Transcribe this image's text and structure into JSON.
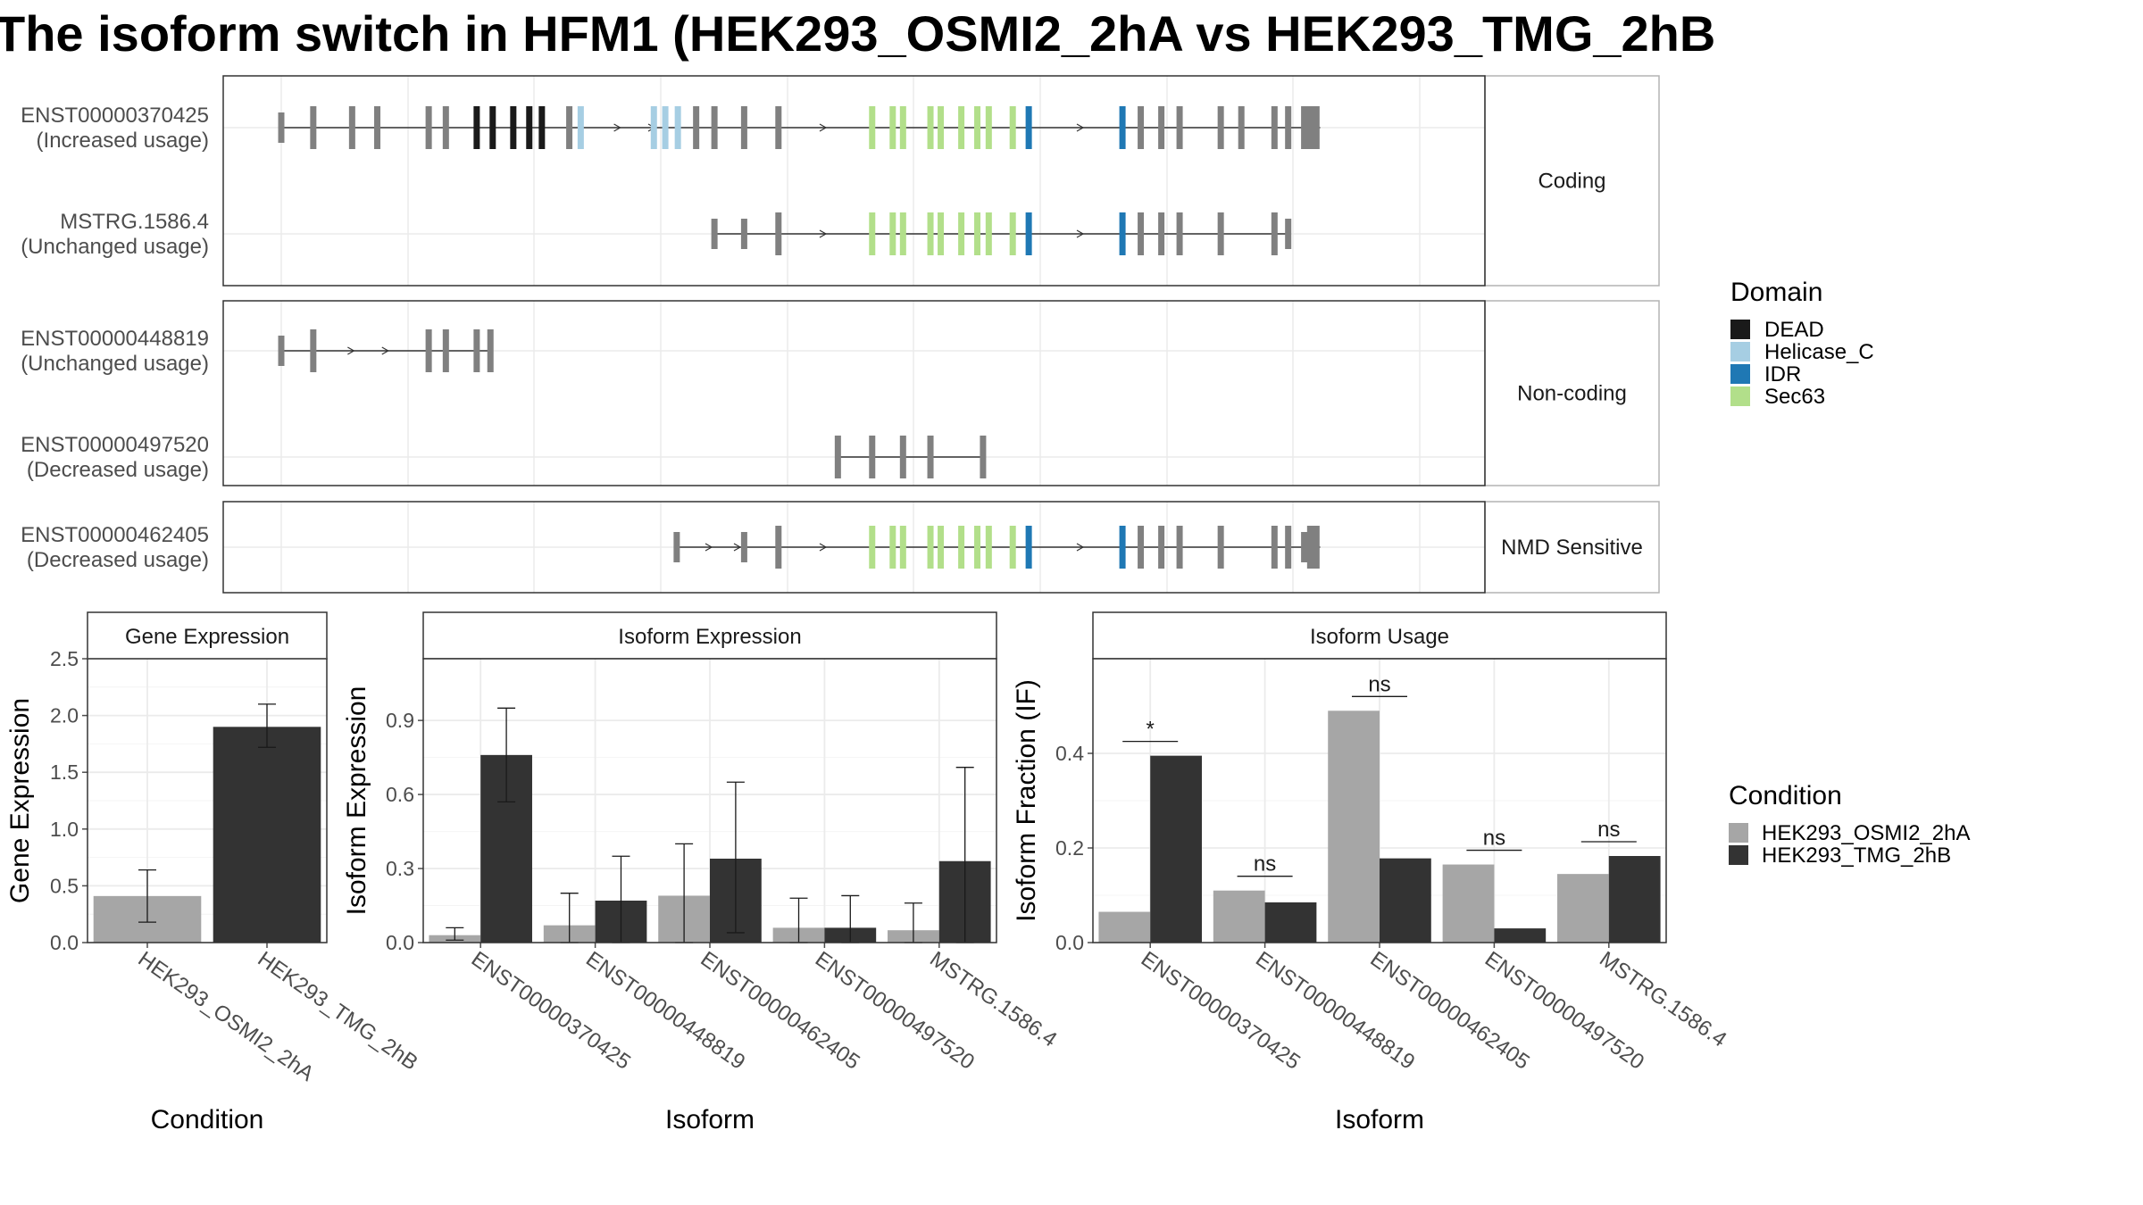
{
  "title": "The isoform switch in HFM1 (HEK293_OSMI2_2hA vs HEK293_TMG_2hB",
  "colors": {
    "DEAD": "#1a1a1a",
    "Helicase_C": "#a6cee3",
    "IDR": "#1f78b4",
    "Sec63": "#b2df8a",
    "exon": "#808080",
    "cond_a": "#a6a6a6",
    "cond_b": "#333333"
  },
  "legends": {
    "domain": {
      "title": "Domain",
      "items": [
        "DEAD",
        "Helicase_C",
        "IDR",
        "Sec63"
      ]
    },
    "condition": {
      "title": "Condition",
      "items": [
        "HEK293_OSMI2_2hA",
        "HEK293_TMG_2hB"
      ]
    }
  },
  "chart_data": [
    {
      "type": "table",
      "panel": "transcript-structure",
      "x_range": [
        0,
        1
      ],
      "facets": [
        {
          "label": "Coding",
          "transcripts": [
            {
              "id": "ENST00000370425",
              "usage": "(Increased usage)",
              "start": 0.0,
              "end": 0.909,
              "arrows": [
                0.295,
                0.325,
                0.475,
                0.7
              ],
              "exons": [
                {
                  "x": 0.0,
                  "d": "exon",
                  "tall": false
                },
                {
                  "x": 0.028,
                  "d": "exon"
                },
                {
                  "x": 0.062,
                  "d": "exon"
                },
                {
                  "x": 0.084,
                  "d": "exon"
                },
                {
                  "x": 0.129,
                  "d": "exon"
                },
                {
                  "x": 0.144,
                  "d": "exon"
                },
                {
                  "x": 0.171,
                  "d": "DEAD"
                },
                {
                  "x": 0.185,
                  "d": "DEAD"
                },
                {
                  "x": 0.203,
                  "d": "DEAD"
                },
                {
                  "x": 0.217,
                  "d": "DEAD"
                },
                {
                  "x": 0.228,
                  "d": "DEAD"
                },
                {
                  "x": 0.252,
                  "d": "exon"
                },
                {
                  "x": 0.262,
                  "d": "Helicase_C"
                },
                {
                  "x": 0.326,
                  "d": "Helicase_C"
                },
                {
                  "x": 0.336,
                  "d": "Helicase_C"
                },
                {
                  "x": 0.347,
                  "d": "Helicase_C"
                },
                {
                  "x": 0.363,
                  "d": "exon"
                },
                {
                  "x": 0.379,
                  "d": "exon"
                },
                {
                  "x": 0.405,
                  "d": "exon"
                },
                {
                  "x": 0.435,
                  "d": "exon"
                },
                {
                  "x": 0.517,
                  "d": "Sec63"
                },
                {
                  "x": 0.535,
                  "d": "Sec63"
                },
                {
                  "x": 0.544,
                  "d": "Sec63"
                },
                {
                  "x": 0.568,
                  "d": "Sec63"
                },
                {
                  "x": 0.577,
                  "d": "Sec63"
                },
                {
                  "x": 0.595,
                  "d": "Sec63"
                },
                {
                  "x": 0.609,
                  "d": "Sec63"
                },
                {
                  "x": 0.619,
                  "d": "Sec63"
                },
                {
                  "x": 0.64,
                  "d": "Sec63"
                },
                {
                  "x": 0.654,
                  "d": "IDR"
                },
                {
                  "x": 0.736,
                  "d": "IDR"
                },
                {
                  "x": 0.752,
                  "d": "exon"
                },
                {
                  "x": 0.77,
                  "d": "exon"
                },
                {
                  "x": 0.786,
                  "d": "exon"
                },
                {
                  "x": 0.822,
                  "d": "exon"
                },
                {
                  "x": 0.84,
                  "d": "exon"
                },
                {
                  "x": 0.869,
                  "d": "exon"
                },
                {
                  "x": 0.881,
                  "d": "exon"
                },
                {
                  "x": 0.895,
                  "d": "exon"
                },
                {
                  "x": 0.903,
                  "d": "exon",
                  "thick": true
                }
              ]
            },
            {
              "id": "MSTRG.1586.4",
              "usage": "(Unchanged usage)",
              "start": 0.379,
              "end": 0.881,
              "arrows": [
                0.475,
                0.7
              ],
              "exons": [
                {
                  "x": 0.379,
                  "d": "exon",
                  "tall": false
                },
                {
                  "x": 0.405,
                  "d": "exon",
                  "tall": false
                },
                {
                  "x": 0.435,
                  "d": "exon"
                },
                {
                  "x": 0.517,
                  "d": "Sec63"
                },
                {
                  "x": 0.535,
                  "d": "Sec63"
                },
                {
                  "x": 0.544,
                  "d": "Sec63"
                },
                {
                  "x": 0.568,
                  "d": "Sec63"
                },
                {
                  "x": 0.577,
                  "d": "Sec63"
                },
                {
                  "x": 0.595,
                  "d": "Sec63"
                },
                {
                  "x": 0.609,
                  "d": "Sec63"
                },
                {
                  "x": 0.619,
                  "d": "Sec63"
                },
                {
                  "x": 0.64,
                  "d": "Sec63"
                },
                {
                  "x": 0.654,
                  "d": "IDR"
                },
                {
                  "x": 0.736,
                  "d": "IDR"
                },
                {
                  "x": 0.752,
                  "d": "exon"
                },
                {
                  "x": 0.77,
                  "d": "exon"
                },
                {
                  "x": 0.786,
                  "d": "exon"
                },
                {
                  "x": 0.822,
                  "d": "exon"
                },
                {
                  "x": 0.869,
                  "d": "exon"
                },
                {
                  "x": 0.881,
                  "d": "exon",
                  "tall": false
                }
              ]
            }
          ]
        },
        {
          "label": "Non-coding",
          "transcripts": [
            {
              "id": "ENST00000448819",
              "usage": "(Unchanged usage)",
              "start": 0.0,
              "end": 0.183,
              "arrows": [
                0.062,
                0.092
              ],
              "exons": [
                {
                  "x": 0.0,
                  "d": "exon",
                  "tall": false
                },
                {
                  "x": 0.028,
                  "d": "exon"
                },
                {
                  "x": 0.129,
                  "d": "exon"
                },
                {
                  "x": 0.144,
                  "d": "exon"
                },
                {
                  "x": 0.171,
                  "d": "exon"
                },
                {
                  "x": 0.183,
                  "d": "exon"
                }
              ]
            },
            {
              "id": "ENST00000497520",
              "usage": "(Decreased usage)",
              "start": 0.487,
              "end": 0.614,
              "arrows": [],
              "exons": [
                {
                  "x": 0.487,
                  "d": "exon"
                },
                {
                  "x": 0.517,
                  "d": "exon"
                },
                {
                  "x": 0.544,
                  "d": "exon"
                },
                {
                  "x": 0.568,
                  "d": "exon"
                },
                {
                  "x": 0.614,
                  "d": "exon"
                }
              ]
            }
          ]
        },
        {
          "label": "NMD Sensitive",
          "transcripts": [
            {
              "id": "ENST00000462405",
              "usage": "(Decreased usage)",
              "start": 0.346,
              "end": 0.909,
              "arrows": [
                0.375,
                0.4,
                0.475,
                0.7
              ],
              "exons": [
                {
                  "x": 0.346,
                  "d": "exon",
                  "tall": false
                },
                {
                  "x": 0.405,
                  "d": "exon",
                  "tall": false
                },
                {
                  "x": 0.435,
                  "d": "exon"
                },
                {
                  "x": 0.517,
                  "d": "Sec63"
                },
                {
                  "x": 0.535,
                  "d": "Sec63"
                },
                {
                  "x": 0.544,
                  "d": "Sec63"
                },
                {
                  "x": 0.568,
                  "d": "Sec63"
                },
                {
                  "x": 0.577,
                  "d": "Sec63"
                },
                {
                  "x": 0.595,
                  "d": "Sec63"
                },
                {
                  "x": 0.609,
                  "d": "Sec63"
                },
                {
                  "x": 0.619,
                  "d": "Sec63"
                },
                {
                  "x": 0.64,
                  "d": "Sec63"
                },
                {
                  "x": 0.654,
                  "d": "IDR"
                },
                {
                  "x": 0.736,
                  "d": "IDR"
                },
                {
                  "x": 0.752,
                  "d": "exon"
                },
                {
                  "x": 0.77,
                  "d": "exon"
                },
                {
                  "x": 0.786,
                  "d": "exon"
                },
                {
                  "x": 0.822,
                  "d": "exon"
                },
                {
                  "x": 0.869,
                  "d": "exon"
                },
                {
                  "x": 0.881,
                  "d": "exon"
                },
                {
                  "x": 0.895,
                  "d": "exon",
                  "tall": false
                },
                {
                  "x": 0.903,
                  "d": "exon",
                  "thick": true
                }
              ]
            }
          ]
        }
      ]
    },
    {
      "type": "bar",
      "title": "Gene Expression",
      "xlabel": "Condition",
      "ylabel": "Gene Expression",
      "ylim": [
        0,
        2.5
      ],
      "yticks": [
        "0.0",
        "0.5",
        "1.0",
        "1.5",
        "2.0",
        "2.5"
      ],
      "categories": [
        "HEK293_OSMI2_2hA",
        "HEK293_TMG_2hB"
      ],
      "values": [
        0.41,
        1.9
      ],
      "err_low": [
        0.18,
        1.72
      ],
      "err_high": [
        0.64,
        2.1
      ]
    },
    {
      "type": "bar",
      "title": "Isoform Expression",
      "xlabel": "Isoform",
      "ylabel": "Isoform Expression",
      "ylim": [
        0,
        1.15
      ],
      "yticks": [
        "0.0",
        "0.3",
        "0.6",
        "0.9"
      ],
      "categories": [
        "ENST00000370425",
        "ENST00000448819",
        "ENST00000462405",
        "ENST00000497520",
        "MSTRG.1586.4"
      ],
      "series": [
        {
          "name": "HEK293_OSMI2_2hA",
          "values": [
            0.03,
            0.07,
            0.19,
            0.06,
            0.05
          ],
          "err_low": [
            0.01,
            0.0,
            0.0,
            0.0,
            0.0
          ],
          "err_high": [
            0.06,
            0.2,
            0.4,
            0.18,
            0.16
          ]
        },
        {
          "name": "HEK293_TMG_2hB",
          "values": [
            0.76,
            0.17,
            0.34,
            0.06,
            0.33
          ],
          "err_low": [
            0.57,
            0.0,
            0.04,
            0.0,
            0.0
          ],
          "err_high": [
            0.95,
            0.35,
            0.65,
            0.19,
            0.71
          ]
        }
      ]
    },
    {
      "type": "bar",
      "title": "Isoform Usage",
      "xlabel": "Isoform",
      "ylabel": "Isoform Fraction (IF)",
      "ylim": [
        0,
        0.6
      ],
      "yticks": [
        "0.0",
        "0.2",
        "0.4"
      ],
      "categories": [
        "ENST00000370425",
        "ENST00000448819",
        "ENST00000462405",
        "ENST00000497520",
        "MSTRG.1586.4"
      ],
      "series": [
        {
          "name": "HEK293_OSMI2_2hA",
          "values": [
            0.065,
            0.11,
            0.49,
            0.165,
            0.145
          ]
        },
        {
          "name": "HEK293_TMG_2hB",
          "values": [
            0.395,
            0.085,
            0.178,
            0.03,
            0.183
          ]
        }
      ],
      "significance": [
        "*",
        "ns",
        "ns",
        "ns",
        "ns"
      ]
    }
  ]
}
